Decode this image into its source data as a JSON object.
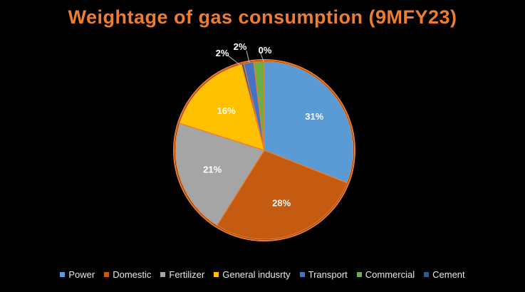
{
  "chart_data": {
    "type": "pie",
    "title": "Weightage of gas consumption (9MFY23)",
    "slices": [
      {
        "name": "Power",
        "value": 31,
        "label": "31%",
        "color": "#5B9BD5"
      },
      {
        "name": "Domestic",
        "value": 28,
        "label": "28%",
        "color": "#C55A11"
      },
      {
        "name": "Fertilizer",
        "value": 21,
        "label": "21%",
        "color": "#A5A5A5"
      },
      {
        "name": "General indusrty",
        "value": 16,
        "label": "16%",
        "color": "#FFC000"
      },
      {
        "name": "Transport",
        "value": 2,
        "label": "2%",
        "color": "#4472C4"
      },
      {
        "name": "Commercial",
        "value": 2,
        "label": "2%",
        "color": "#70AD47"
      },
      {
        "name": "Cement",
        "value": 0,
        "label": "0%",
        "color": "#255E91"
      }
    ],
    "legend_position": "bottom",
    "label_color": "#ffffff",
    "title_color": "#ED7D31",
    "border_color": "#ED7D31"
  }
}
